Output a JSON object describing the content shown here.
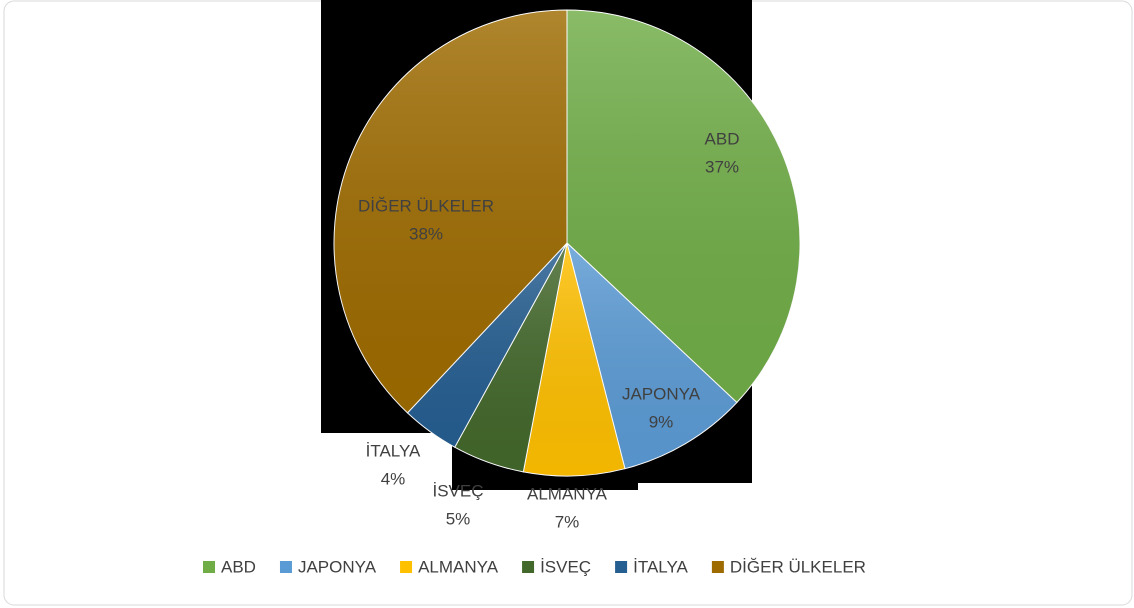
{
  "chart_data": {
    "type": "pie",
    "categories": [
      "ABD",
      "JAPONYA",
      "ALMANYA",
      "İSVEÇ",
      "İTALYA",
      "DİĞER ÜLKELER"
    ],
    "values": [
      37,
      9,
      7,
      5,
      4,
      38
    ],
    "value_labels": [
      "37%",
      "9%",
      "7%",
      "5%",
      "4%",
      "38%"
    ],
    "colors": [
      "#70ad47",
      "#5b9bd5",
      "#ffc000",
      "#43682b",
      "#255e91",
      "#9e6b00"
    ],
    "legend": "bottom"
  }
}
